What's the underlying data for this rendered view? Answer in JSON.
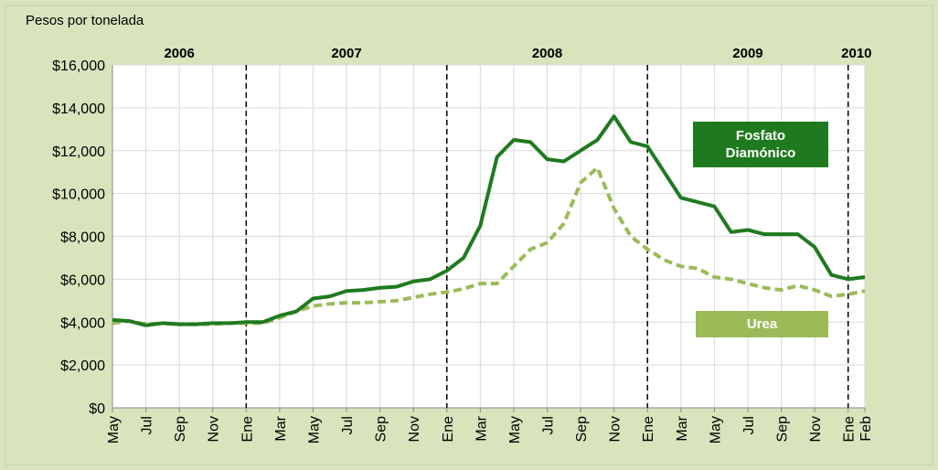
{
  "chart_data": {
    "type": "line",
    "y_axis_label": "Pesos por tonelada",
    "categories": [
      "May",
      null,
      "Jul",
      null,
      "Sep",
      null,
      "Nov",
      null,
      "Ene",
      null,
      "Mar",
      null,
      "May",
      null,
      "Jul",
      null,
      "Sep",
      null,
      "Nov",
      null,
      "Ene",
      null,
      "Mar",
      null,
      "May",
      null,
      "Jul",
      null,
      "Sep",
      null,
      "Nov",
      null,
      "Ene",
      null,
      "Mar",
      null,
      "May",
      null,
      "Jul",
      null,
      "Sep",
      null,
      "Nov",
      null,
      "Ene",
      "Feb"
    ],
    "year_labels": [
      "2006",
      "2007",
      "2008",
      "2009",
      "2010"
    ],
    "series": [
      {
        "name": "Fosfato Diamónico",
        "color": "#1f7a1f",
        "dash": false,
        "values": [
          4100,
          4050,
          3850,
          3950,
          3900,
          3900,
          3950,
          3950,
          4000,
          4000,
          4300,
          4500,
          5100,
          5200,
          5450,
          5500,
          5600,
          5650,
          5900,
          6000,
          6400,
          7000,
          8500,
          11700,
          12500,
          12400,
          11600,
          11500,
          12000,
          12500,
          13600,
          12400,
          12200,
          11000,
          9800,
          9600,
          9400,
          8200,
          8300,
          8100,
          8100,
          8100,
          7500,
          6200,
          6000,
          6100
        ]
      },
      {
        "name": "Urea",
        "color": "#9bbb59",
        "dash": true,
        "values": [
          3950,
          4050,
          3900,
          3950,
          3900,
          3900,
          3900,
          3950,
          3950,
          3950,
          4200,
          4500,
          4750,
          4850,
          4900,
          4900,
          4950,
          5000,
          5150,
          5300,
          5400,
          5550,
          5800,
          5800,
          6600,
          7400,
          7700,
          8600,
          10500,
          11200,
          9300,
          8000,
          7400,
          6900,
          6600,
          6500,
          6100,
          6000,
          5800,
          5600,
          5500,
          5700,
          5500,
          5200,
          5300,
          5450
        ]
      }
    ],
    "ylim": [
      0,
      16000
    ],
    "yticks": [
      {
        "value": 0,
        "label": "$0"
      },
      {
        "value": 2000,
        "label": "$2,000"
      },
      {
        "value": 4000,
        "label": "$4,000"
      },
      {
        "value": 6000,
        "label": "$6,000"
      },
      {
        "value": 8000,
        "label": "$8,000"
      },
      {
        "value": 10000,
        "label": "$10,000"
      },
      {
        "value": 12000,
        "label": "$12,000"
      },
      {
        "value": 14000,
        "label": "$14,000"
      },
      {
        "value": 16000,
        "label": "$16,000"
      }
    ],
    "grid": true
  }
}
